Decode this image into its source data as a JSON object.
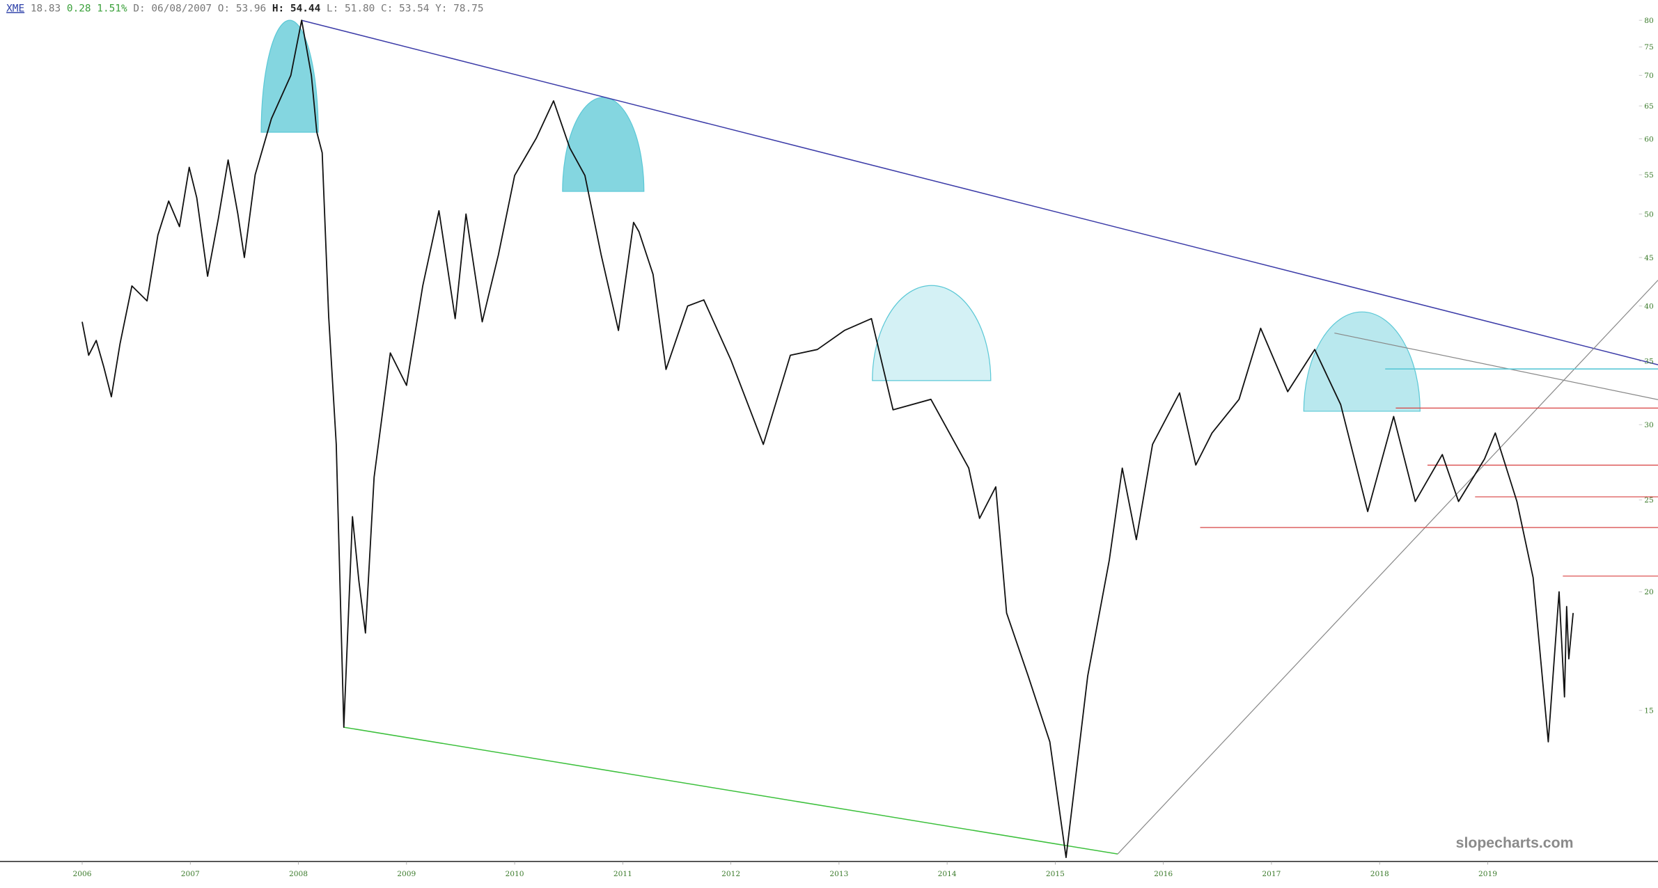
{
  "header": {
    "symbol": "XME",
    "last": "18.83",
    "change": "0.28",
    "change_pct": "1.51%",
    "date": "D: 06/08/2007",
    "open": "O: 53.96",
    "high": "H: 54.44",
    "low": "L: 51.80",
    "close": "C: 53.54",
    "year_high": "Y: 78.75"
  },
  "watermark": "slopecharts.com",
  "chart_data": {
    "type": "line",
    "log_scale": true,
    "color": "#111111",
    "xlim": [
      2005.24,
      2020.35
    ],
    "xticks": [
      2006,
      2007,
      2008,
      2009,
      2010,
      2011,
      2012,
      2013,
      2014,
      2015,
      2016,
      2017,
      2018,
      2019
    ],
    "ylim": [
      10.4,
      84
    ],
    "yticks": [
      15,
      20,
      25,
      30,
      35,
      40,
      45,
      50,
      55,
      60,
      65,
      70,
      75,
      80
    ],
    "x": [
      2006.0,
      2006.06,
      2006.13,
      2006.2,
      2006.27,
      2006.35,
      2006.46,
      2006.6,
      2006.7,
      2006.8,
      2006.9,
      2006.99,
      2007.06,
      2007.16,
      2007.26,
      2007.35,
      2007.44,
      2007.5,
      2007.6,
      2007.75,
      2007.93,
      2008.03,
      2008.12,
      2008.17,
      2008.22,
      2008.28,
      2008.35,
      2008.42,
      2008.5,
      2008.56,
      2008.62,
      2008.7,
      2008.85,
      2009.0,
      2009.15,
      2009.3,
      2009.45,
      2009.55,
      2009.7,
      2009.85,
      2010.0,
      2010.2,
      2010.36,
      2010.51,
      2010.65,
      2010.8,
      2010.96,
      2011.1,
      2011.15,
      2011.28,
      2011.4,
      2011.6,
      2011.75,
      2012.0,
      2012.3,
      2012.55,
      2012.8,
      2013.05,
      2013.3,
      2013.5,
      2013.85,
      2014.2,
      2014.3,
      2014.45,
      2014.55,
      2014.75,
      2014.95,
      2015.1,
      2015.3,
      2015.5,
      2015.62,
      2015.75,
      2015.9,
      2016.15,
      2016.3,
      2016.45,
      2016.7,
      2016.9,
      2017.15,
      2017.4,
      2017.64,
      2017.89,
      2018.13,
      2018.33,
      2018.58,
      2018.73,
      2018.97,
      2019.07,
      2019.27,
      2019.42,
      2019.56,
      2019.66,
      2019.71,
      2019.73,
      2019.75,
      2019.79
    ],
    "values": [
      38.5,
      35.5,
      36.8,
      34.5,
      32.1,
      36.5,
      42.0,
      40.5,
      47.5,
      51.6,
      48.5,
      56.0,
      52.0,
      43.0,
      49.5,
      57.0,
      50.0,
      45.0,
      55.0,
      63.0,
      70.0,
      80.0,
      70.0,
      61.0,
      58.0,
      39.0,
      28.6,
      14.4,
      24.0,
      20.5,
      18.1,
      26.4,
      35.7,
      33.0,
      42.0,
      50.4,
      38.8,
      50.0,
      38.5,
      45.3,
      54.9,
      60.1,
      65.8,
      58.7,
      54.9,
      45.3,
      37.7,
      49.0,
      47.9,
      43.2,
      34.3,
      40.0,
      40.6,
      35.1,
      28.6,
      35.5,
      36.0,
      37.7,
      38.8,
      31.1,
      31.9,
      27.0,
      23.9,
      25.8,
      19.0,
      16.3,
      13.9,
      10.5,
      16.3,
      21.6,
      27.0,
      22.7,
      28.6,
      32.4,
      27.2,
      29.4,
      31.9,
      37.9,
      32.5,
      36.0,
      31.5,
      24.3,
      30.6,
      24.9,
      27.9,
      24.9,
      27.6,
      29.4,
      24.9,
      20.7,
      13.9,
      20.0,
      15.5,
      19.3,
      17.0,
      19.0
    ]
  }
}
